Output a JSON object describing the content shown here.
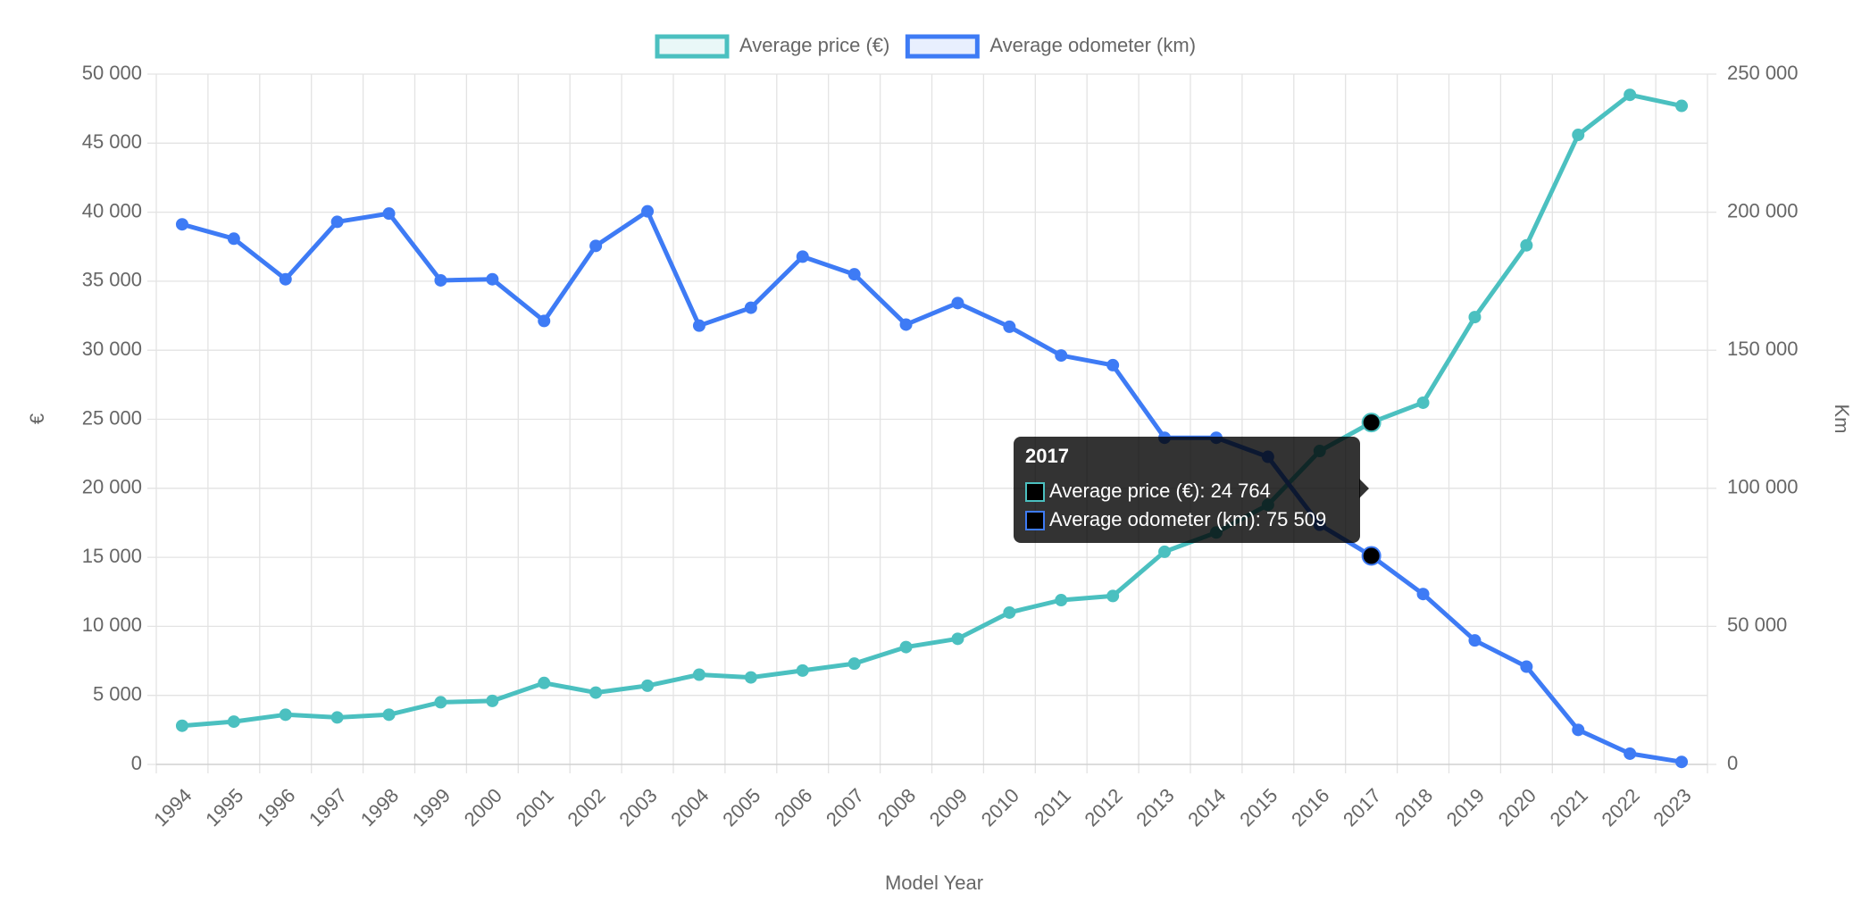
{
  "chart_data": {
    "type": "line",
    "categories": [
      "1994",
      "1995",
      "1996",
      "1997",
      "1998",
      "1999",
      "2000",
      "2001",
      "2002",
      "2003",
      "2004",
      "2005",
      "2006",
      "2007",
      "2008",
      "2009",
      "2010",
      "2011",
      "2012",
      "2013",
      "2014",
      "2015",
      "2016",
      "2017",
      "2018",
      "2019",
      "2020",
      "2021",
      "2022",
      "2023"
    ],
    "series": [
      {
        "name": "Average price (€)",
        "color": "#4bc0c0",
        "axis": "y",
        "values": [
          2800,
          3100,
          3600,
          3400,
          3600,
          4500,
          4600,
          5900,
          5200,
          5700,
          6500,
          6300,
          6800,
          7300,
          8500,
          9100,
          11000,
          11900,
          12200,
          15400,
          16800,
          18800,
          22700,
          24764,
          26200,
          32400,
          37600,
          45600,
          48500,
          47700
        ]
      },
      {
        "name": "Average odometer (km)",
        "color": "#3e7bf5",
        "axis": "y2",
        "values": [
          195600,
          190400,
          175700,
          196500,
          199500,
          175300,
          175700,
          160600,
          187800,
          200300,
          158900,
          165400,
          183900,
          177500,
          159300,
          167100,
          158500,
          148100,
          144600,
          118300,
          118300,
          111400,
          86800,
          75509,
          61700,
          44900,
          35400,
          12500,
          3900,
          900
        ]
      }
    ],
    "xlabel": "Model Year",
    "ylabel": "€",
    "y2label": "Km",
    "ylim": [
      0,
      50000
    ],
    "yticks": [
      0,
      {
        "value": 5000,
        "label": "5 000"
      },
      {
        "value": 10000,
        "label": "10 000"
      },
      {
        "value": 15000,
        "label": "15 000"
      },
      {
        "value": 20000,
        "label": "20 000"
      },
      {
        "value": 25000,
        "label": "25 000"
      },
      {
        "value": 30000,
        "label": "30 000"
      },
      {
        "value": 35000,
        "label": "35 000"
      },
      {
        "value": 40000,
        "label": "40 000"
      },
      {
        "value": 45000,
        "label": "45 000"
      },
      {
        "value": 50000,
        "label": "50 000"
      }
    ],
    "y2lim": [
      0,
      250000
    ],
    "y2ticks": [
      0,
      {
        "value": 50000,
        "label": "50 000"
      },
      {
        "value": 100000,
        "label": "100 000"
      },
      {
        "value": 150000,
        "label": "150 000"
      },
      {
        "value": 200000,
        "label": "200 000"
      },
      {
        "value": 250000,
        "label": "250 000"
      }
    ],
    "grid": true,
    "legend": "top",
    "tooltip": {
      "index": 23,
      "title": "2017",
      "lines": [
        "Average price (€): 24 764",
        "Average odometer (km): 75 509"
      ]
    }
  }
}
